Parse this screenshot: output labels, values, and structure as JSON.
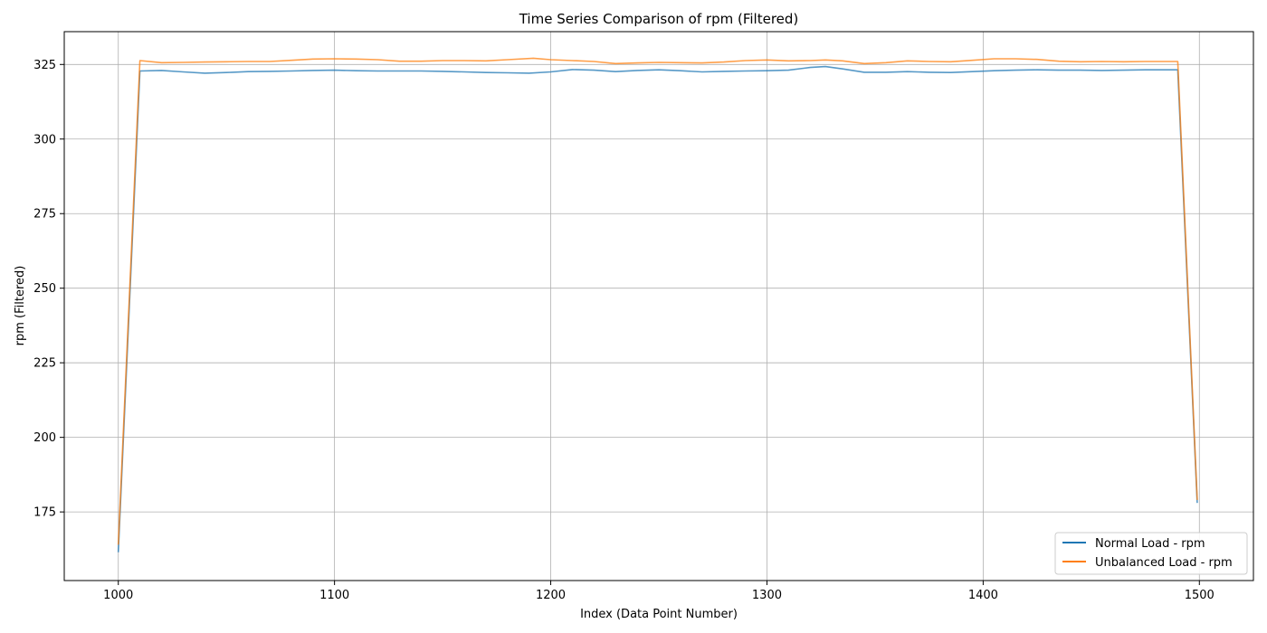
{
  "chart_data": {
    "type": "line",
    "title": "Time Series Comparison of rpm (Filtered)",
    "xlabel": "Index (Data Point Number)",
    "ylabel": "rpm (Filtered)",
    "xlim": [
      975,
      1525
    ],
    "ylim": [
      152,
      336
    ],
    "xticks": [
      1000,
      1100,
      1200,
      1300,
      1400,
      1500
    ],
    "yticks": [
      175,
      200,
      225,
      250,
      275,
      300,
      325
    ],
    "grid": true,
    "legend_position": "bottom-right",
    "series": [
      {
        "name": "Normal Load - rpm",
        "color": "#1f77b4",
        "x": [
          1000,
          1010,
          1020,
          1030,
          1040,
          1050,
          1060,
          1070,
          1080,
          1090,
          1100,
          1110,
          1120,
          1130,
          1140,
          1150,
          1160,
          1170,
          1180,
          1190,
          1200,
          1210,
          1220,
          1230,
          1240,
          1250,
          1260,
          1270,
          1280,
          1290,
          1300,
          1310,
          1320,
          1327,
          1335,
          1345,
          1355,
          1365,
          1375,
          1385,
          1395,
          1405,
          1415,
          1425,
          1435,
          1445,
          1455,
          1465,
          1475,
          1490,
          1499
        ],
        "y": [
          161.5,
          322.8,
          323.0,
          322.5,
          322.1,
          322.3,
          322.6,
          322.7,
          322.8,
          323.0,
          323.1,
          322.9,
          322.8,
          322.8,
          322.8,
          322.7,
          322.5,
          322.3,
          322.2,
          322.1,
          322.5,
          323.3,
          323.1,
          322.6,
          323.0,
          323.2,
          322.9,
          322.5,
          322.7,
          322.8,
          322.9,
          323.1,
          324.0,
          324.3,
          323.5,
          322.4,
          322.4,
          322.6,
          322.4,
          322.3,
          322.6,
          322.9,
          323.1,
          323.2,
          323.1,
          323.1,
          323.0,
          323.1,
          323.2,
          323.2,
          178.0
        ]
      },
      {
        "name": "Unbalanced Load - rpm",
        "color": "#ff7f0e",
        "x": [
          1000,
          1010,
          1020,
          1030,
          1040,
          1050,
          1060,
          1070,
          1080,
          1090,
          1100,
          1110,
          1120,
          1130,
          1140,
          1150,
          1160,
          1170,
          1180,
          1192,
          1200,
          1210,
          1220,
          1230,
          1240,
          1250,
          1260,
          1270,
          1280,
          1290,
          1300,
          1310,
          1320,
          1327,
          1335,
          1345,
          1355,
          1365,
          1375,
          1385,
          1395,
          1405,
          1415,
          1425,
          1435,
          1445,
          1455,
          1465,
          1475,
          1490,
          1499
        ],
        "y": [
          164.0,
          326.3,
          325.6,
          325.7,
          325.8,
          325.9,
          326.0,
          326.0,
          326.4,
          326.8,
          326.9,
          326.8,
          326.6,
          326.1,
          326.1,
          326.3,
          326.3,
          326.2,
          326.6,
          327.1,
          326.6,
          326.3,
          326.0,
          325.3,
          325.5,
          325.7,
          325.6,
          325.5,
          325.8,
          326.3,
          326.5,
          326.2,
          326.3,
          326.5,
          326.2,
          325.3,
          325.6,
          326.2,
          326.0,
          325.9,
          326.4,
          326.9,
          326.9,
          326.7,
          326.1,
          325.9,
          326.0,
          325.9,
          326.0,
          326.0,
          179.0
        ]
      }
    ]
  }
}
